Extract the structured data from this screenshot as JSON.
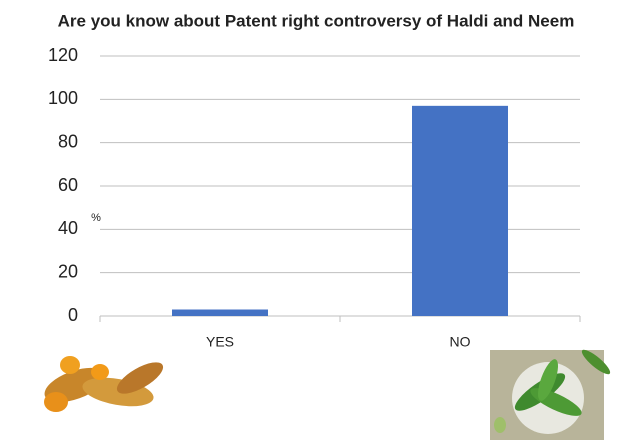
{
  "chart_data": {
    "type": "bar",
    "title": "Are you know about Patent right controversy of Haldi and Neem",
    "y_label": "%",
    "categories": [
      "YES",
      "NO"
    ],
    "values": [
      3,
      97
    ],
    "color": "#4472c4",
    "ylim": [
      0,
      120
    ],
    "yticks": [
      0,
      20,
      40,
      60,
      80,
      100,
      120
    ],
    "grid": true
  }
}
